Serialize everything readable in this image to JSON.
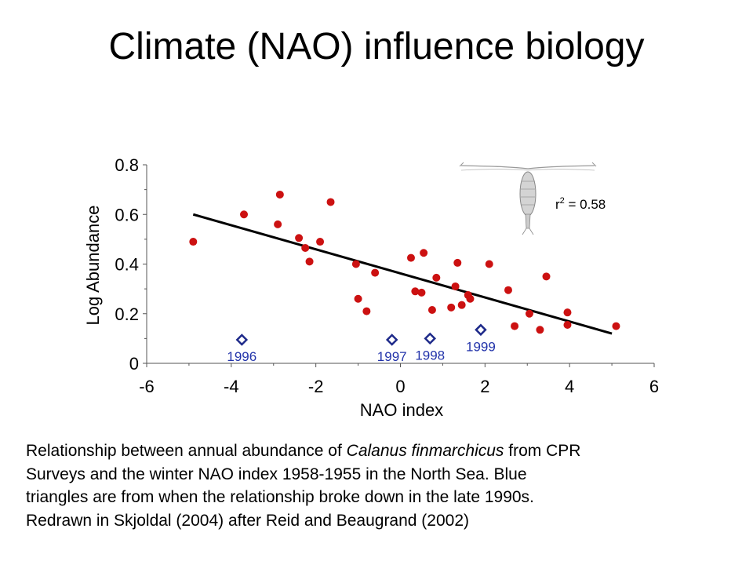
{
  "slide": {
    "title": "Climate (NAO) influence biology"
  },
  "caption": {
    "line1_pre": "Relationship between annual abundance of ",
    "species": "Calanus finmarchicus",
    "line1_post": " from CPR",
    "line2": "Surveys and the winter NAO index 1958-1955 in the North Sea. Blue",
    "line3": "triangles are from when the relationship broke down in the late 1990s.",
    "line4": "Redrawn in Skjoldal (2004) after Reid and Beaugrand (2002)"
  },
  "colors": {
    "point_red": "#cc1111",
    "point_blue": "#1e2a8a",
    "label_blue": "#2233aa",
    "axis": "#555555",
    "line": "#000000"
  },
  "icons": {
    "copepod": "copepod-illustration"
  },
  "chart_data": {
    "type": "scatter",
    "xlabel": "NAO index",
    "ylabel": "Log Abundance",
    "xlim": [
      -6,
      6
    ],
    "ylim": [
      0,
      0.8
    ],
    "xticks": [
      -6,
      -4,
      -2,
      0,
      2,
      4,
      6
    ],
    "yticks": [
      0,
      0.2,
      0.4,
      0.6,
      0.8
    ],
    "ytick_labels": [
      "0",
      "0.2",
      "0.4",
      "0.6",
      "0.8"
    ],
    "annotation": {
      "r": "r",
      "exp": "2",
      "rest": " = 0.58"
    },
    "series": [
      {
        "points": [
          [
            -4.9,
            0.49
          ],
          [
            -3.7,
            0.6
          ],
          [
            -2.85,
            0.68
          ],
          [
            -2.9,
            0.56
          ],
          [
            -2.4,
            0.505
          ],
          [
            -2.25,
            0.465
          ],
          [
            -2.15,
            0.41
          ],
          [
            -1.9,
            0.49
          ],
          [
            -1.65,
            0.65
          ],
          [
            -1.05,
            0.4
          ],
          [
            -1.0,
            0.26
          ],
          [
            -0.8,
            0.21
          ],
          [
            -0.6,
            0.365
          ],
          [
            0.25,
            0.425
          ],
          [
            0.35,
            0.29
          ],
          [
            0.55,
            0.445
          ],
          [
            0.5,
            0.285
          ],
          [
            0.75,
            0.215
          ],
          [
            0.85,
            0.345
          ],
          [
            1.2,
            0.225
          ],
          [
            1.3,
            0.31
          ],
          [
            1.35,
            0.405
          ],
          [
            1.45,
            0.235
          ],
          [
            1.6,
            0.275
          ],
          [
            1.65,
            0.26
          ],
          [
            2.1,
            0.4
          ],
          [
            2.55,
            0.295
          ],
          [
            2.7,
            0.15
          ],
          [
            3.05,
            0.2
          ],
          [
            3.3,
            0.135
          ],
          [
            3.45,
            0.35
          ],
          [
            3.95,
            0.205
          ],
          [
            3.95,
            0.155
          ],
          [
            5.1,
            0.15
          ]
        ]
      },
      {
        "points": [
          {
            "x": -3.75,
            "y": 0.095,
            "label": "1996"
          },
          {
            "x": -0.2,
            "y": 0.095,
            "label": "1997"
          },
          {
            "x": 0.7,
            "y": 0.1,
            "label": "1998"
          },
          {
            "x": 1.9,
            "y": 0.135,
            "label": "1999"
          }
        ]
      }
    ],
    "fit_line": {
      "x": [
        -4.9,
        5.0
      ],
      "y": [
        0.6,
        0.12
      ]
    }
  }
}
